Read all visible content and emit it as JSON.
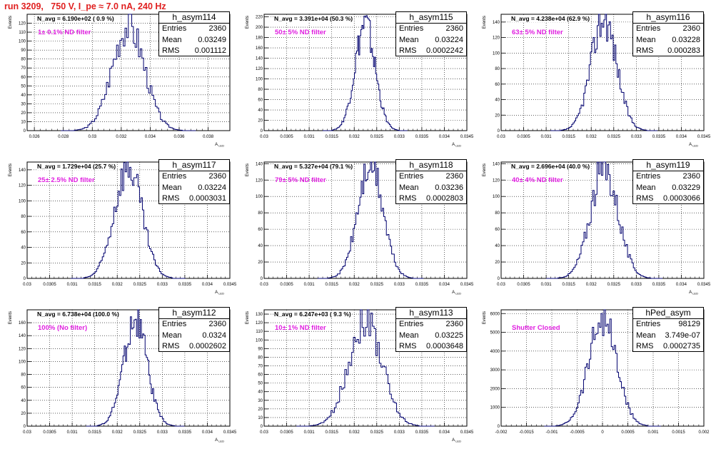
{
  "title": "run 3209,   750 V, I_pe ≈ 7.0 nA, 240 Hz",
  "chart_data": [
    {
      "type": "histogram",
      "name": "h_asym114",
      "navg": "N_avg = 6.190e+02 ( 0.9 %)",
      "filter": "1± 0.1% ND filter",
      "stats": {
        "entries": "2360",
        "mean": "0.03249",
        "rms": "0.001112"
      },
      "xlim": [
        0.0255,
        0.0395
      ],
      "xticks": [
        0.026,
        0.028,
        0.03,
        0.032,
        0.034,
        0.036,
        0.038
      ],
      "xtick_labels": [
        "0.026",
        "0.028",
        "0.03",
        "0.032",
        "0.034",
        "0.036",
        "0.038"
      ],
      "ylim": [
        0,
        130
      ],
      "yticks": [
        0,
        10,
        20,
        30,
        40,
        50,
        60,
        70,
        80,
        90,
        100,
        110,
        120
      ],
      "ytick_labels": [
        "0",
        "10",
        "20",
        "30",
        "40",
        "50",
        "60",
        "70",
        "80",
        "90",
        "100",
        "110",
        "120"
      ],
      "ylabel": "Events",
      "xlabel": "A_LED",
      "mean": 0.03249,
      "sigma": 0.00111,
      "peak": 118
    },
    {
      "type": "histogram",
      "name": "h_asym115",
      "navg": "N_avg = 3.391e+04 (50.3 %)",
      "filter": "50± 5% ND filter",
      "stats": {
        "entries": "2360",
        "mean": "0.03224",
        "rms": "0.0002242"
      },
      "xlim": [
        0.03,
        0.0345
      ],
      "xticks": [
        0.03,
        0.0305,
        0.031,
        0.0315,
        0.032,
        0.0325,
        0.033,
        0.0335,
        0.034,
        0.0345
      ],
      "xtick_labels": [
        "0.03",
        "0.0305",
        "0.031",
        "0.0315",
        "0.032",
        "0.0325",
        "0.033",
        "0.0335",
        "0.034",
        "0.0345"
      ],
      "ylim": [
        0,
        225
      ],
      "yticks": [
        0,
        20,
        40,
        60,
        80,
        100,
        120,
        140,
        160,
        180,
        200,
        220
      ],
      "ytick_labels": [
        "0",
        "20",
        "40",
        "60",
        "80",
        "100",
        "120",
        "140",
        "160",
        "180",
        "200",
        "220"
      ],
      "ylabel": "Events",
      "xlabel": "A_LED",
      "mean": 0.03224,
      "sigma": 0.000224,
      "peak": 205
    },
    {
      "type": "histogram",
      "name": "h_asym116",
      "navg": "N_avg = 4.238e+04 (62.9 %)",
      "filter": "63± 5% ND filter",
      "stats": {
        "entries": "2360",
        "mean": "0.03228",
        "rms": "0.000283"
      },
      "xlim": [
        0.03,
        0.0345
      ],
      "xticks": [
        0.03,
        0.0305,
        0.031,
        0.0315,
        0.032,
        0.0325,
        0.033,
        0.0335,
        0.034,
        0.0345
      ],
      "xtick_labels": [
        "0.03",
        "0.0305",
        "0.031",
        "0.0315",
        "0.032",
        "0.0325",
        "0.033",
        "0.0335",
        "0.034",
        "0.0345"
      ],
      "ylim": [
        0,
        150
      ],
      "yticks": [
        0,
        20,
        40,
        60,
        80,
        100,
        120,
        140
      ],
      "ytick_labels": [
        "0",
        "20",
        "40",
        "60",
        "80",
        "100",
        "120",
        "140"
      ],
      "ylabel": "Events",
      "xlabel": "A_LED",
      "mean": 0.03228,
      "sigma": 0.000283,
      "peak": 145
    },
    {
      "type": "histogram",
      "name": "h_asym117",
      "navg": "N_avg = 1.729e+04 (25.7 %)",
      "filter": "25± 2.5% ND filter",
      "stats": {
        "entries": "2360",
        "mean": "0.03224",
        "rms": "0.0003031"
      },
      "xlim": [
        0.03,
        0.0345
      ],
      "xticks": [
        0.03,
        0.0305,
        0.031,
        0.0315,
        0.032,
        0.0325,
        0.033,
        0.0335,
        0.034,
        0.0345
      ],
      "xtick_labels": [
        "0.03",
        "0.0305",
        "0.031",
        "0.0315",
        "0.032",
        "0.0325",
        "0.033",
        "0.0335",
        "0.034",
        "0.0345"
      ],
      "ylim": [
        0,
        150
      ],
      "yticks": [
        0,
        20,
        40,
        60,
        80,
        100,
        120,
        140
      ],
      "ytick_labels": [
        "0",
        "20",
        "40",
        "60",
        "80",
        "100",
        "120",
        "140"
      ],
      "ylabel": "Events",
      "xlabel": "A_LED",
      "mean": 0.03224,
      "sigma": 0.000303,
      "peak": 145
    },
    {
      "type": "histogram",
      "name": "h_asym118",
      "navg": "N_avg = 5.327e+04 (79.1 %)",
      "filter": "79± 5% ND filter",
      "stats": {
        "entries": "2360",
        "mean": "0.03236",
        "rms": "0.0002803"
      },
      "xlim": [
        0.03,
        0.0345
      ],
      "xticks": [
        0.03,
        0.0305,
        0.031,
        0.0315,
        0.032,
        0.0325,
        0.033,
        0.0335,
        0.034,
        0.0345
      ],
      "xtick_labels": [
        "0.03",
        "0.0305",
        "0.031",
        "0.0315",
        "0.032",
        "0.0325",
        "0.033",
        "0.0335",
        "0.034",
        "0.0345"
      ],
      "ylim": [
        0,
        142
      ],
      "yticks": [
        0,
        20,
        40,
        60,
        80,
        100,
        120,
        140
      ],
      "ytick_labels": [
        "0",
        "20",
        "40",
        "60",
        "80",
        "100",
        "120",
        "140"
      ],
      "ylabel": "Events",
      "xlabel": "A_LED",
      "mean": 0.03236,
      "sigma": 0.00028,
      "peak": 138
    },
    {
      "type": "histogram",
      "name": "h_asym119",
      "navg": "N_avg = 2.696e+04 (40.0 %)",
      "filter": "40± 4% ND filter",
      "stats": {
        "entries": "2360",
        "mean": "0.03229",
        "rms": "0.0003066"
      },
      "xlim": [
        0.03,
        0.0345
      ],
      "xticks": [
        0.03,
        0.0305,
        0.031,
        0.0315,
        0.032,
        0.0325,
        0.033,
        0.0335,
        0.034,
        0.0345
      ],
      "xtick_labels": [
        "0.03",
        "0.0305",
        "0.031",
        "0.0315",
        "0.032",
        "0.0325",
        "0.033",
        "0.0335",
        "0.034",
        "0.0345"
      ],
      "ylim": [
        0,
        142
      ],
      "yticks": [
        0,
        20,
        40,
        60,
        80,
        100,
        120,
        140
      ],
      "ytick_labels": [
        "0",
        "20",
        "40",
        "60",
        "80",
        "100",
        "120",
        "140"
      ],
      "ylabel": "Events",
      "xlabel": "A_LED",
      "mean": 0.03229,
      "sigma": 0.000307,
      "peak": 135
    },
    {
      "type": "histogram",
      "name": "h_asym112",
      "navg": "N_avg = 6.738e+04 (100.0 %)",
      "filter": "100% (No filter)",
      "stats": {
        "entries": "2360",
        "mean": "0.0324",
        "rms": "0.0002602"
      },
      "xlim": [
        0.03,
        0.0345
      ],
      "xticks": [
        0.03,
        0.0305,
        0.031,
        0.0315,
        0.032,
        0.0325,
        0.033,
        0.0335,
        0.034,
        0.0345
      ],
      "xtick_labels": [
        "0.03",
        "0.0305",
        "0.031",
        "0.0315",
        "0.032",
        "0.0325",
        "0.033",
        "0.0335",
        "0.034",
        "0.0345"
      ],
      "ylim": [
        0,
        180
      ],
      "yticks": [
        0,
        20,
        40,
        60,
        80,
        100,
        120,
        140,
        160
      ],
      "ytick_labels": [
        "0",
        "20",
        "40",
        "60",
        "80",
        "100",
        "120",
        "140",
        "160"
      ],
      "ylabel": "Events",
      "xlabel": "A_LED",
      "mean": 0.0324,
      "sigma": 0.00026,
      "peak": 165
    },
    {
      "type": "histogram",
      "name": "h_asym113",
      "navg": "N_avg = 6.247e+03 ( 9.3 %)",
      "filter": "10± 1% ND filter",
      "stats": {
        "entries": "2360",
        "mean": "0.03225",
        "rms": "0.0003648"
      },
      "xlim": [
        0.03,
        0.0345
      ],
      "xticks": [
        0.03,
        0.0305,
        0.031,
        0.0315,
        0.032,
        0.0325,
        0.033,
        0.0335,
        0.034,
        0.0345
      ],
      "xtick_labels": [
        "0.03",
        "0.0305",
        "0.031",
        "0.0315",
        "0.032",
        "0.0325",
        "0.033",
        "0.0335",
        "0.034",
        "0.0345"
      ],
      "ylim": [
        0,
        135
      ],
      "yticks": [
        0,
        10,
        20,
        30,
        40,
        50,
        60,
        70,
        80,
        90,
        100,
        110,
        120,
        130
      ],
      "ytick_labels": [
        "0",
        "10",
        "20",
        "30",
        "40",
        "50",
        "60",
        "70",
        "80",
        "90",
        "100",
        "110",
        "120",
        "130"
      ],
      "ylabel": "Events",
      "xlabel": "A_LED",
      "mean": 0.03225,
      "sigma": 0.000365,
      "peak": 125
    },
    {
      "type": "histogram",
      "name": "hPed_asym",
      "navg": "",
      "filter": "Shutter Closed",
      "stats": {
        "entries": "98129",
        "mean": "3.749e-07",
        "rms": "0.0002735"
      },
      "xlim": [
        -0.002,
        0.002
      ],
      "xticks": [
        -0.002,
        -0.0015,
        -0.001,
        -0.0005,
        0,
        0.0005,
        0.001,
        0.0015,
        0.002
      ],
      "xtick_labels": [
        "-0.002",
        "-0.0015",
        "-0.001",
        "-0.0005",
        "0",
        "0.0005",
        "0.001",
        "0.0015",
        "0.002"
      ],
      "ylim": [
        0,
        6200
      ],
      "yticks": [
        0,
        1000,
        2000,
        3000,
        4000,
        5000,
        6000
      ],
      "ytick_labels": [
        "0",
        "1000",
        "2000",
        "3000",
        "4000",
        "5000",
        "6000"
      ],
      "ylabel": "Events",
      "xlabel": "",
      "mean": 0.0,
      "sigma": 0.000274,
      "peak": 5800
    }
  ]
}
